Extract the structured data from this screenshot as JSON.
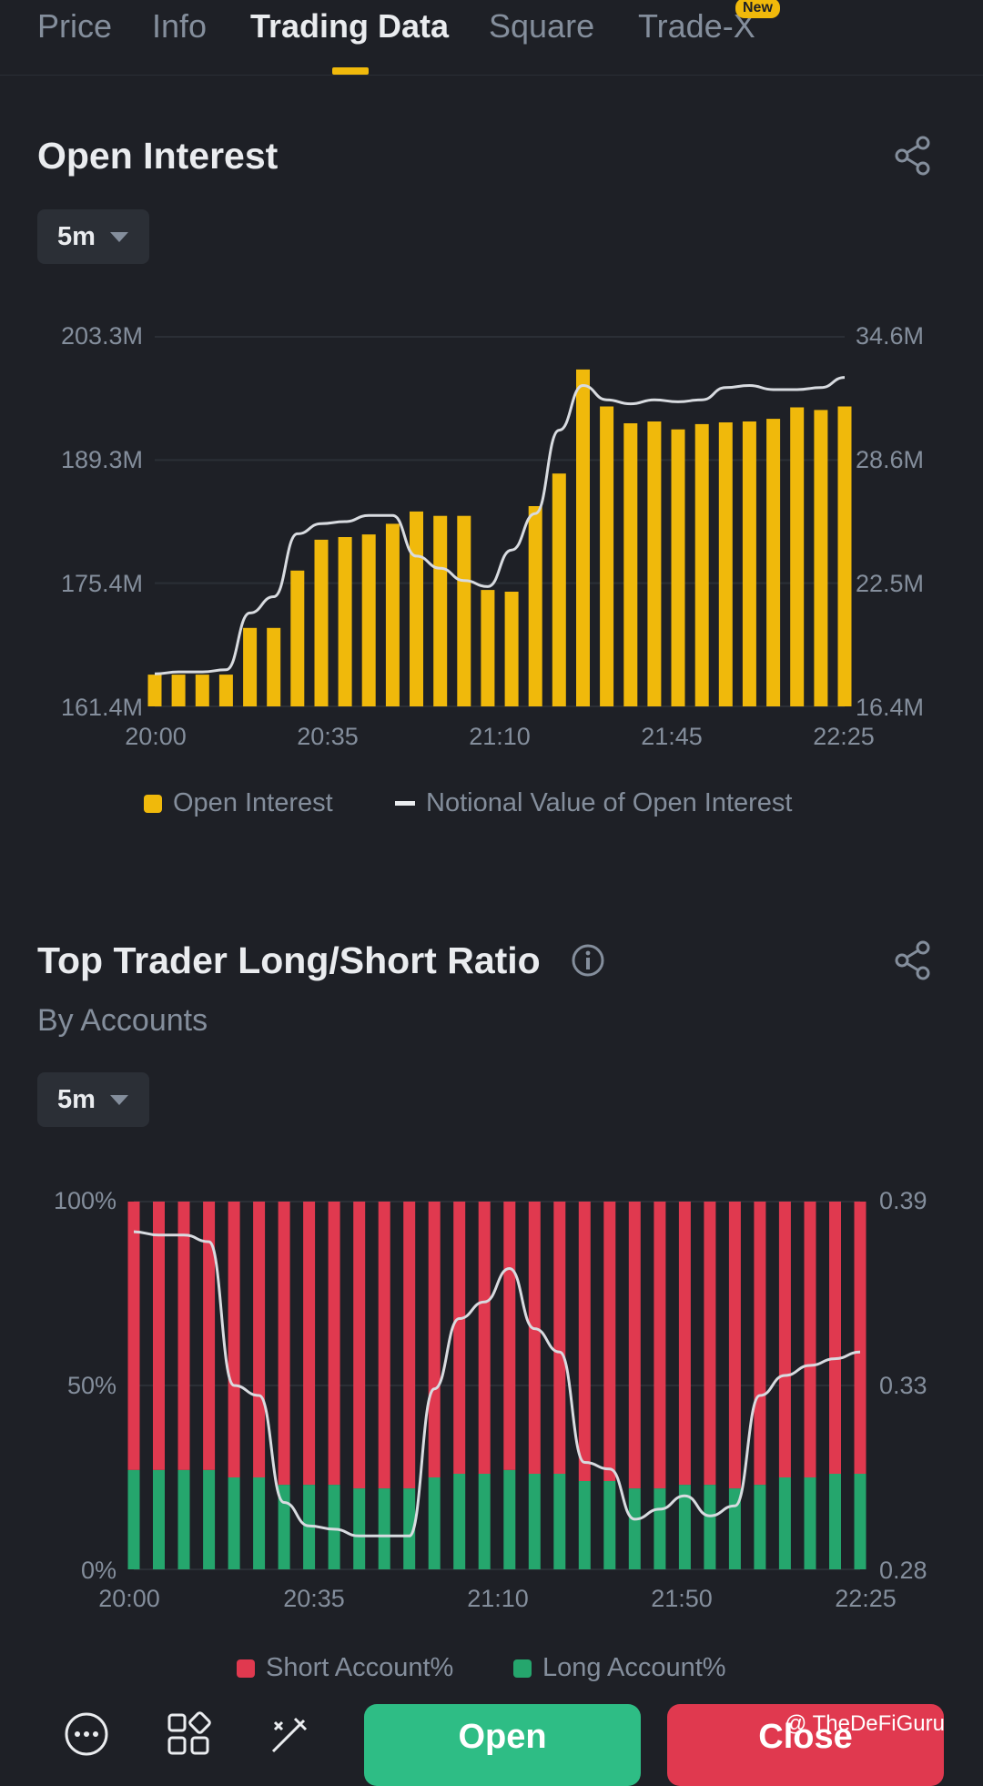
{
  "tabs": [
    {
      "label": "Price"
    },
    {
      "label": "Info"
    },
    {
      "label": "Trading Data"
    },
    {
      "label": "Square"
    },
    {
      "label": "Trade-X",
      "badge": "New"
    }
  ],
  "colors": {
    "accent": "#f0b90b",
    "short": "#e0394f",
    "long": "#25a66d",
    "line": "#d8dbe0"
  },
  "section1": {
    "title": "Open Interest",
    "interval": "5m"
  },
  "section2": {
    "title": "Top Trader Long/Short Ratio",
    "subtitle": "By Accounts",
    "interval": "5m"
  },
  "bottom": {
    "open_label": "Open",
    "close_label": "Close",
    "watermark": "@ TheDeFiGuru"
  },
  "icons": [
    "more-icon",
    "apps-icon",
    "tools-icon",
    "share-icon",
    "info-icon"
  ],
  "chart_data": [
    {
      "type": "bar",
      "x_ticks": [
        "20:00",
        "20:35",
        "21:10",
        "21:45",
        "22:25"
      ],
      "y_left_ticks": [
        "203.3M",
        "189.3M",
        "175.4M",
        "161.4M"
      ],
      "y_right_ticks": [
        "34.6M",
        "28.6M",
        "22.5M",
        "16.4M"
      ],
      "ylim_left": [
        161.4,
        203.3
      ],
      "ylim_right": [
        16.4,
        34.6
      ],
      "legend": [
        "Open Interest",
        "Notional Value of Open Interest"
      ],
      "series": [
        {
          "name": "Open Interest",
          "type": "bar",
          "unit": "M",
          "values": [
            165.0,
            165.0,
            165.0,
            165.0,
            170.3,
            170.3,
            176.8,
            180.3,
            180.6,
            180.9,
            182.1,
            183.5,
            183.0,
            183.0,
            174.6,
            174.4,
            184.1,
            187.8,
            199.6,
            195.4,
            193.5,
            193.7,
            192.8,
            193.4,
            193.6,
            193.7,
            194.0,
            195.3,
            195.0,
            195.4
          ]
        },
        {
          "name": "Notional Value of Open Interest",
          "type": "line",
          "unit": "M",
          "values": [
            18.0,
            18.1,
            18.1,
            18.2,
            21.0,
            21.8,
            24.9,
            25.4,
            25.5,
            25.8,
            25.8,
            23.8,
            23.2,
            22.6,
            22.3,
            24.1,
            25.9,
            30.0,
            32.2,
            31.5,
            31.3,
            31.5,
            31.4,
            31.5,
            32.1,
            32.2,
            32.0,
            32.0,
            32.1,
            32.6
          ]
        }
      ]
    },
    {
      "type": "bar",
      "x_ticks": [
        "20:00",
        "20:35",
        "21:10",
        "21:50",
        "22:25"
      ],
      "y_left_ticks": [
        "100%",
        "50%",
        "0%"
      ],
      "y_right_ticks": [
        "0.39",
        "0.33",
        "0.28"
      ],
      "ylim_left": [
        0,
        100
      ],
      "ylim_right": [
        0.28,
        0.39
      ],
      "legend": [
        "Short Account%",
        "Long Account%"
      ],
      "series": [
        {
          "name": "Long Account%",
          "type": "stacked-bar",
          "values": [
            27,
            27,
            27,
            27,
            25,
            25,
            23,
            23,
            23,
            22,
            22,
            22,
            25,
            26,
            26,
            27,
            26,
            26,
            24,
            24,
            22,
            22,
            23,
            23,
            22,
            23,
            25,
            25,
            26,
            26
          ]
        },
        {
          "name": "Short Account%",
          "type": "stacked-bar",
          "values": [
            73,
            73,
            73,
            73,
            75,
            75,
            77,
            77,
            77,
            78,
            78,
            78,
            75,
            74,
            74,
            73,
            74,
            74,
            76,
            76,
            78,
            78,
            77,
            77,
            78,
            77,
            75,
            75,
            74,
            74
          ]
        },
        {
          "name": "Long/Short Ratio",
          "type": "line",
          "values": [
            0.381,
            0.38,
            0.38,
            0.378,
            0.335,
            0.332,
            0.3,
            0.293,
            0.292,
            0.29,
            0.29,
            0.29,
            0.334,
            0.355,
            0.36,
            0.37,
            0.352,
            0.345,
            0.312,
            0.31,
            0.295,
            0.298,
            0.302,
            0.296,
            0.299,
            0.332,
            0.338,
            0.341,
            0.343,
            0.345
          ]
        }
      ]
    }
  ]
}
